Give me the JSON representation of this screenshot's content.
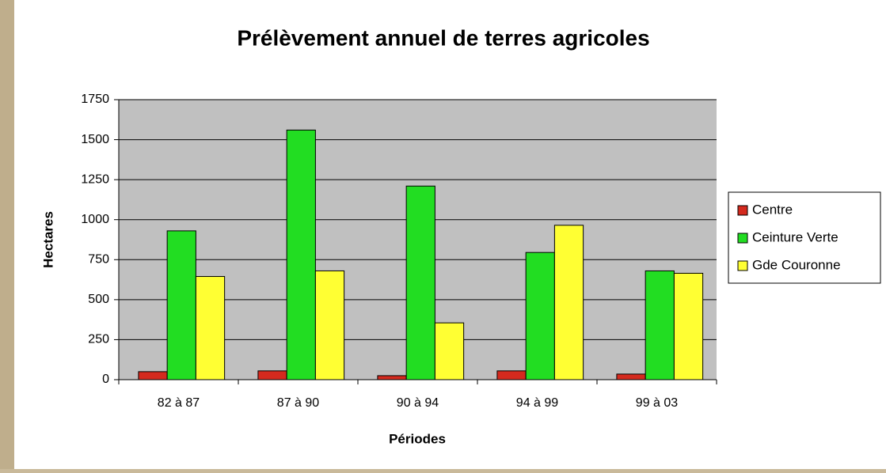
{
  "chart_data": {
    "type": "bar",
    "title": "Prélèvement annuel de terres agricoles",
    "x_label": "Périodes",
    "y_label": "Hectares",
    "categories": [
      "82 à 87",
      "87 à 90",
      "90 à 94",
      "94 à 99",
      "99 à 03"
    ],
    "series": [
      {
        "name": "Centre",
        "color": "#d42a1e",
        "values": [
          50,
          55,
          25,
          55,
          35
        ]
      },
      {
        "name": "Ceinture Verte",
        "color": "#22dd22",
        "values": [
          930,
          1560,
          1210,
          795,
          680
        ]
      },
      {
        "name": "Gde Couronne",
        "color": "#ffff33",
        "values": [
          645,
          680,
          355,
          965,
          665
        ]
      }
    ],
    "ylim": [
      0,
      1750
    ],
    "yticks": [
      0,
      250,
      500,
      750,
      1000,
      1250,
      1500,
      1750
    ],
    "grid": true,
    "legend": "right"
  }
}
